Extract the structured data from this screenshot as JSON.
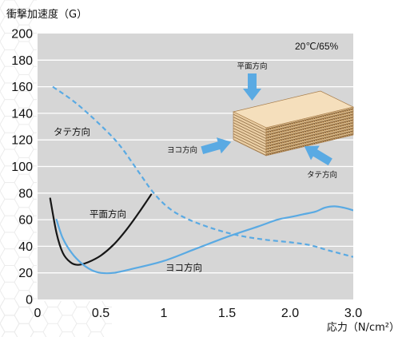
{
  "chart_data": {
    "type": "line",
    "ylabel": "衝撃加速度（G）",
    "xlabel": "応力（N/cm²）",
    "ylim": [
      0,
      200
    ],
    "yticks": [
      {
        "value": 0,
        "label": "0"
      },
      {
        "value": 20,
        "label": "20"
      },
      {
        "value": 40,
        "label": "40"
      },
      {
        "value": 60,
        "label": "60"
      },
      {
        "value": 80,
        "label": "80"
      },
      {
        "value": 100,
        "label": "100"
      },
      {
        "value": 120,
        "label": "120"
      },
      {
        "value": 140,
        "label": "140"
      },
      {
        "value": 160,
        "label": "160"
      },
      {
        "value": 180,
        "label": "180"
      },
      {
        "value": 200,
        "label": "200"
      }
    ],
    "xticks": [
      {
        "value": 0,
        "label": "0"
      },
      {
        "value": 0.5,
        "label": "0.5"
      },
      {
        "value": 1,
        "label": "1"
      },
      {
        "value": 1.5,
        "label": "1.5"
      },
      {
        "value": 2.0,
        "label": "2.0"
      },
      {
        "value": 3.0,
        "label": "3.0"
      }
    ],
    "grid": true,
    "plot_background": "#d6d6d6",
    "gridline_color": "#ffffff",
    "annotation": "20℃/65%",
    "series": [
      {
        "name": "タテ方向",
        "line_style": "dashed",
        "color": "#5aaae3",
        "points": [
          [
            0.12,
            160
          ],
          [
            0.3,
            148
          ],
          [
            0.5,
            131
          ],
          [
            0.65,
            116
          ],
          [
            0.8,
            96
          ],
          [
            0.92,
            80
          ],
          [
            1.05,
            68
          ],
          [
            1.2,
            60
          ],
          [
            1.4,
            53
          ],
          [
            1.6,
            48
          ],
          [
            1.8,
            45
          ],
          [
            2.0,
            43
          ],
          [
            2.3,
            41
          ],
          [
            2.6,
            37
          ],
          [
            3.0,
            32
          ]
        ]
      },
      {
        "name": "平面方向",
        "line_style": "solid",
        "color": "#161616",
        "points": [
          [
            0.1,
            76
          ],
          [
            0.15,
            50
          ],
          [
            0.2,
            35
          ],
          [
            0.26,
            28
          ],
          [
            0.32,
            26
          ],
          [
            0.4,
            28
          ],
          [
            0.5,
            33
          ],
          [
            0.6,
            41
          ],
          [
            0.7,
            52
          ],
          [
            0.8,
            65
          ],
          [
            0.9,
            79
          ]
        ]
      },
      {
        "name": "ヨコ方向",
        "line_style": "solid",
        "color": "#5aaae3",
        "points": [
          [
            0.15,
            60
          ],
          [
            0.2,
            46
          ],
          [
            0.27,
            35
          ],
          [
            0.35,
            27
          ],
          [
            0.43,
            22
          ],
          [
            0.5,
            20
          ],
          [
            0.6,
            20
          ],
          [
            0.75,
            23
          ],
          [
            1.0,
            29
          ],
          [
            1.25,
            38
          ],
          [
            1.5,
            47
          ],
          [
            1.75,
            55
          ],
          [
            1.9,
            60
          ],
          [
            2.0,
            62
          ],
          [
            2.2,
            64
          ],
          [
            2.4,
            66
          ],
          [
            2.55,
            69
          ],
          [
            2.7,
            70
          ],
          [
            2.85,
            69
          ],
          [
            3.0,
            67
          ]
        ]
      }
    ]
  },
  "inset": {
    "top_arrow_label": "平面方向",
    "side_arrow_label": "ヨコ方向",
    "end_arrow_label": "タテ方向",
    "arrow_color": "#5aaae3"
  }
}
